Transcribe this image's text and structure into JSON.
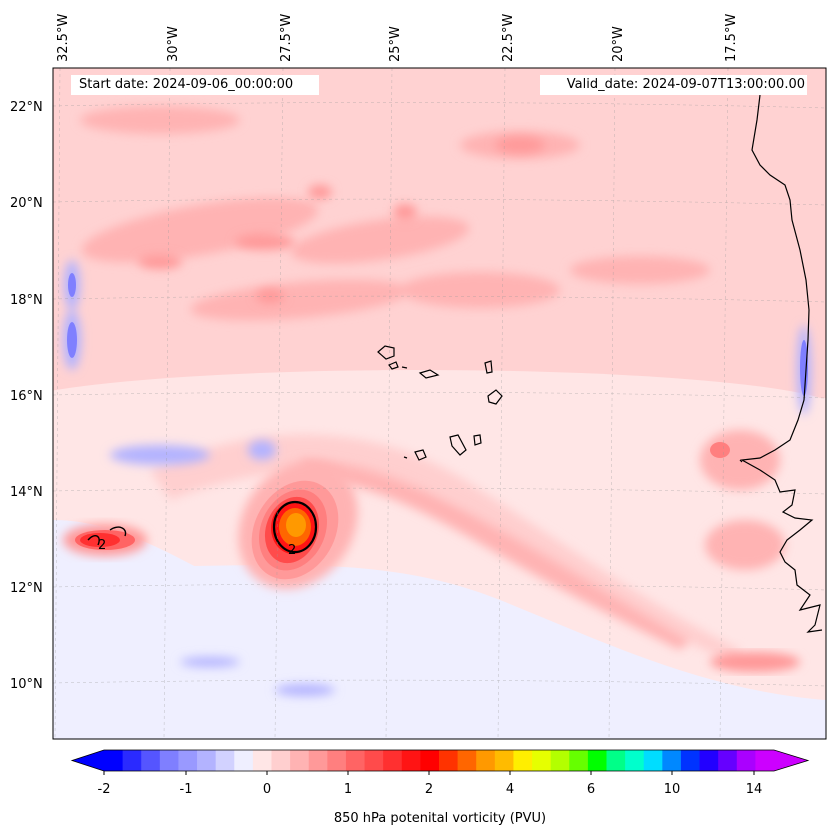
{
  "header": {
    "start_date": "Start date: 2024-09-06_00:00:00",
    "valid_date": "Valid_date: 2024-09-07T13:00:00.00"
  },
  "map": {
    "lon_labels": [
      "32.5°W",
      "30°W",
      "27.5°W",
      "25°W",
      "22.5°W",
      "20°W",
      "17.5°W"
    ],
    "lat_labels": [
      "22°N",
      "20°N",
      "18°N",
      "16°N",
      "14°N",
      "12°N",
      "10°N"
    ],
    "contour_label": "2",
    "features": [
      "cape-verde-islands",
      "west-africa-coastline"
    ]
  },
  "colorbar": {
    "label": "850 hPa potenital vorticity (PVU)",
    "ticks": [
      "-2",
      "-1",
      "0",
      "1",
      "2",
      "4",
      "6",
      "10",
      "14"
    ],
    "colors": [
      "#0000ff",
      "#2a2aff",
      "#5555ff",
      "#7f7fff",
      "#9999ff",
      "#b3b3ff",
      "#d2d2ff",
      "#efefff",
      "#ffe6e6",
      "#ffcfcf",
      "#ffb3b3",
      "#ff9999",
      "#ff7f7f",
      "#ff6464",
      "#ff4b4b",
      "#ff3030",
      "#ff1414",
      "#ff0000",
      "#ff3300",
      "#ff6600",
      "#ff9900",
      "#ffbb00",
      "#ffee00",
      "#e6ff00",
      "#b3ff00",
      "#66ff00",
      "#00ff00",
      "#00ff88",
      "#00ffcc",
      "#00ddff",
      "#0088ff",
      "#0033ff",
      "#2200ff",
      "#6600ff",
      "#aa00ff",
      "#cc00ff"
    ]
  }
}
